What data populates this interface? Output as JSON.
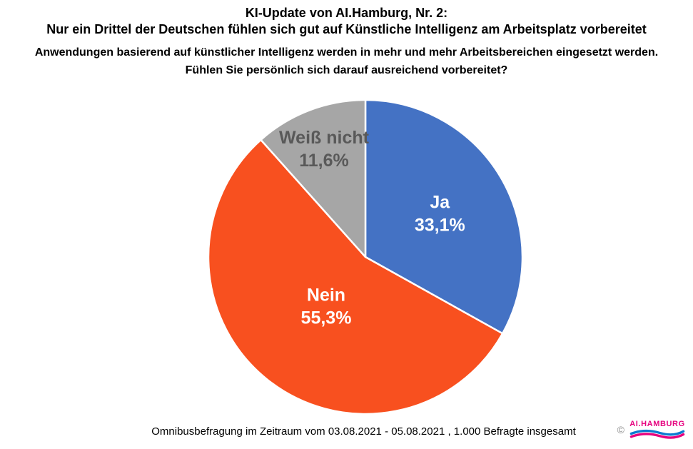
{
  "page": {
    "background_color": "#FFFFFF"
  },
  "header": {
    "title_line1": "KI-Update von AI.Hamburg, Nr. 2:",
    "title_line2": "Nur ein Drittel der Deutschen fühlen sich gut auf Künstliche Intelligenz am Arbeitsplatz vorbereitet",
    "question_line1": "Anwendungen basierend auf künstlicher Intelligenz werden in mehr und mehr Arbeitsbereichen eingesetzt werden.",
    "question_line2": "Fühlen Sie persönlich sich darauf ausreichend vorbereitet?"
  },
  "chart_data": {
    "type": "pie",
    "title": "KI-Update von AI.Hamburg, Nr. 2: Nur ein Drittel der Deutschen fühlen sich gut auf Künstliche Intelligenz am Arbeitsplatz vorbereitet",
    "start_angle_deg": 0,
    "direction": "clockwise",
    "legend_position": "none",
    "labels": "inside",
    "separator_color": "#FFFFFF",
    "categories": [
      "Ja",
      "Nein",
      "Weiß nicht"
    ],
    "values": [
      33.1,
      55.3,
      11.6
    ],
    "slices": [
      {
        "label": "Ja",
        "value": 33.1,
        "display": "33,1%",
        "color": "#4472C4",
        "label_color": "#FFFFFF"
      },
      {
        "label": "Nein",
        "value": 55.3,
        "display": "55,3%",
        "color": "#F8501F",
        "label_color": "#FFFFFF"
      },
      {
        "label": "Weiß nicht",
        "value": 11.6,
        "display": "11,6%",
        "color": "#A6A6A6",
        "label_color": "#595959"
      }
    ]
  },
  "footer": {
    "source_note": "Omnibusbefragung im Zeitraum vom 03.08.2021 - 05.08.2021 , 1.000 Befragte insgesamt"
  },
  "logo": {
    "copyright_symbol": "©",
    "wordmark": "AI.HAMBURG",
    "wordmark_color": "#E6007E",
    "wave_top_color": "#0B7AD1",
    "wave_bottom_color": "#E6007E"
  }
}
